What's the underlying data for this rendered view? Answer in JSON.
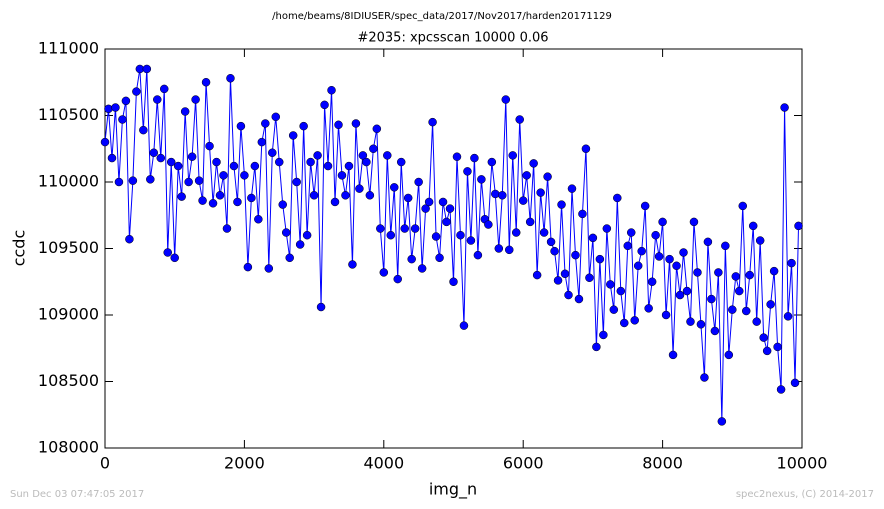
{
  "chart_data": {
    "type": "line",
    "suptitle": "/home/beams/8IDIUSER/spec_data/2017/Nov2017/harden20171129",
    "title": "#2035: xpcsscan 10000 0.06",
    "xlabel": "img_n",
    "ylabel": "ccdc",
    "footer_left": "Sun Dec 03 07:47:05 2017",
    "footer_right": "spec2nexus, (C) 2014-2017",
    "xlim": [
      0,
      10000
    ],
    "xticks": [
      0,
      2000,
      4000,
      6000,
      8000,
      10000
    ],
    "ylim": [
      108000,
      111000
    ],
    "yticks": [
      108000,
      108500,
      109000,
      109500,
      110000,
      110500,
      111000
    ],
    "grid": false,
    "x": [
      0,
      50,
      100,
      150,
      200,
      250,
      300,
      350,
      400,
      450,
      500,
      550,
      600,
      650,
      700,
      750,
      800,
      850,
      900,
      950,
      1000,
      1050,
      1100,
      1150,
      1200,
      1250,
      1300,
      1350,
      1400,
      1450,
      1500,
      1550,
      1600,
      1650,
      1700,
      1750,
      1800,
      1850,
      1900,
      1950,
      2000,
      2050,
      2100,
      2150,
      2200,
      2250,
      2300,
      2350,
      2400,
      2450,
      2500,
      2550,
      2600,
      2650,
      2700,
      2750,
      2800,
      2850,
      2900,
      2950,
      3000,
      3050,
      3100,
      3150,
      3200,
      3250,
      3300,
      3350,
      3400,
      3450,
      3500,
      3550,
      3600,
      3650,
      3700,
      3750,
      3800,
      3850,
      3900,
      3950,
      4000,
      4050,
      4100,
      4150,
      4200,
      4250,
      4300,
      4350,
      4400,
      4450,
      4500,
      4550,
      4600,
      4650,
      4700,
      4750,
      4800,
      4850,
      4900,
      4950,
      5000,
      5050,
      5100,
      5150,
      5200,
      5250,
      5300,
      5350,
      5400,
      5450,
      5500,
      5550,
      5600,
      5650,
      5700,
      5750,
      5800,
      5850,
      5900,
      5950,
      6000,
      6050,
      6100,
      6150,
      6200,
      6250,
      6300,
      6350,
      6400,
      6450,
      6500,
      6550,
      6600,
      6650,
      6700,
      6750,
      6800,
      6850,
      6900,
      6950,
      7000,
      7050,
      7100,
      7150,
      7200,
      7250,
      7300,
      7350,
      7400,
      7450,
      7500,
      7550,
      7600,
      7650,
      7700,
      7750,
      7800,
      7850,
      7900,
      7950,
      8000,
      8050,
      8100,
      8150,
      8200,
      8250,
      8300,
      8350,
      8400,
      8450,
      8500,
      8550,
      8600,
      8650,
      8700,
      8750,
      8800,
      8850,
      8900,
      8950,
      9000,
      9050,
      9100,
      9150,
      9200,
      9250,
      9300,
      9350,
      9400,
      9450,
      9500,
      9550,
      9600,
      9650,
      9700,
      9750,
      9800,
      9850,
      9900,
      9950
    ],
    "series": [
      {
        "name": "ccdc",
        "color": "#0000ff",
        "values": [
          110300,
          110550,
          110180,
          110560,
          110000,
          110470,
          110610,
          109570,
          110010,
          110680,
          110850,
          110390,
          110850,
          110020,
          110220,
          110620,
          110180,
          110700,
          109470,
          110150,
          109430,
          110120,
          109890,
          110530,
          110000,
          110190,
          110620,
          110010,
          109860,
          110750,
          110270,
          109840,
          110150,
          109900,
          110050,
          109650,
          110780,
          110120,
          109850,
          110420,
          110050,
          109360,
          109880,
          110120,
          109720,
          110300,
          110440,
          109350,
          110220,
          110490,
          110150,
          109830,
          109620,
          109430,
          110350,
          110000,
          109530,
          110420,
          109600,
          110150,
          109900,
          110200,
          109060,
          110580,
          110120,
          110690,
          109850,
          110430,
          110050,
          109900,
          110120,
          109380,
          110440,
          109950,
          110200,
          110150,
          109900,
          110250,
          110400,
          109650,
          109320,
          110200,
          109600,
          109960,
          109270,
          110150,
          109650,
          109880,
          109420,
          109650,
          110000,
          109350,
          109800,
          109850,
          110450,
          109590,
          109430,
          109850,
          109700,
          109800,
          109250,
          110190,
          109600,
          108920,
          110080,
          109560,
          110180,
          109450,
          110020,
          109720,
          109680,
          110150,
          109910,
          109500,
          109900,
          110620,
          109490,
          110200,
          109620,
          110470,
          109860,
          110050,
          109700,
          110140,
          109300,
          109920,
          109620,
          110040,
          109550,
          109480,
          109260,
          109830,
          109310,
          109150,
          109950,
          109450,
          109120,
          109760,
          110250,
          109280,
          109580,
          108760,
          109420,
          108850,
          109650,
          109230,
          109040,
          109880,
          109180,
          108940,
          109520,
          109620,
          108960,
          109370,
          109480,
          109820,
          109050,
          109250,
          109600,
          109440,
          109700,
          109000,
          109420,
          108700,
          109370,
          109150,
          109470,
          109180,
          108950,
          109700,
          109320,
          108930,
          108530,
          109550,
          109120,
          108880,
          109320,
          108200,
          109520,
          108700,
          109040,
          109290,
          109180,
          109820,
          109030,
          109300,
          109670,
          108950,
          109560,
          108830,
          108730,
          109080,
          109330,
          108760,
          108440,
          110560,
          108990,
          109390,
          108490,
          109670
        ]
      }
    ]
  }
}
